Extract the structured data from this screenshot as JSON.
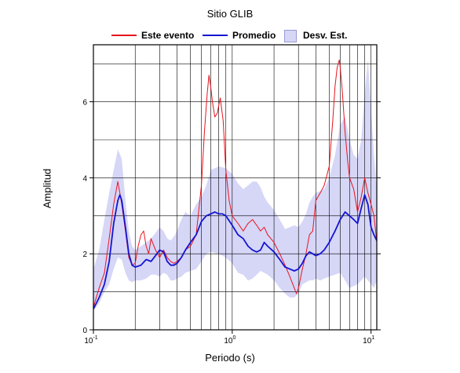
{
  "chart_data": {
    "type": "line",
    "title": "Sitio GLIB",
    "xlabel": "Periodo (s)",
    "ylabel": "Amplitud",
    "x_scale": "log",
    "xlim": [
      0.1,
      11
    ],
    "ylim": [
      0,
      7.5
    ],
    "grid": true,
    "legend_position": "top",
    "x_ticks": [
      {
        "value": 0.1,
        "base": "10",
        "exp": "-1"
      },
      {
        "value": 1,
        "base": "10",
        "exp": "0"
      },
      {
        "value": 10,
        "base": "10",
        "exp": "1"
      }
    ],
    "y_ticks": [
      0,
      2,
      4,
      6
    ],
    "colors": {
      "este": "#e8141e",
      "promedio": "#1414d2",
      "band_fill": "#d6d6f7",
      "band_edge": "#9a9ad8"
    },
    "series": [
      {
        "name": "Este evento",
        "x": [
          0.1,
          0.11,
          0.12,
          0.13,
          0.14,
          0.15,
          0.155,
          0.16,
          0.17,
          0.18,
          0.19,
          0.2,
          0.21,
          0.22,
          0.23,
          0.24,
          0.25,
          0.26,
          0.28,
          0.3,
          0.32,
          0.34,
          0.36,
          0.38,
          0.4,
          0.43,
          0.46,
          0.5,
          0.55,
          0.6,
          0.63,
          0.66,
          0.68,
          0.7,
          0.72,
          0.75,
          0.78,
          0.82,
          0.86,
          0.9,
          0.95,
          1.0,
          1.1,
          1.2,
          1.3,
          1.4,
          1.5,
          1.6,
          1.7,
          1.8,
          1.9,
          2.0,
          2.2,
          2.4,
          2.6,
          2.8,
          2.9,
          3.0,
          3.2,
          3.4,
          3.6,
          3.8,
          4.0,
          4.3,
          4.6,
          5.0,
          5.3,
          5.5,
          5.7,
          5.9,
          6.0,
          6.2,
          6.5,
          6.8,
          7.0,
          7.5,
          8.0,
          8.5,
          9.0,
          9.5,
          10.0,
          10.5,
          11.0
        ],
        "y": [
          0.6,
          1.1,
          1.5,
          2.4,
          3.3,
          3.9,
          3.6,
          3.3,
          2.6,
          1.9,
          1.7,
          1.75,
          2.2,
          2.5,
          2.6,
          2.2,
          2.0,
          2.4,
          2.1,
          1.9,
          2.1,
          1.9,
          1.8,
          1.75,
          1.8,
          1.9,
          2.1,
          2.2,
          2.5,
          3.8,
          5.2,
          6.2,
          6.7,
          6.4,
          6.0,
          5.6,
          5.7,
          6.1,
          5.5,
          4.2,
          3.4,
          3.0,
          2.8,
          2.6,
          2.8,
          2.9,
          2.75,
          2.6,
          2.7,
          2.5,
          2.4,
          2.3,
          2.0,
          1.7,
          1.4,
          1.1,
          0.95,
          1.1,
          1.6,
          2.0,
          2.5,
          2.6,
          3.4,
          3.6,
          3.8,
          4.3,
          5.5,
          6.4,
          6.9,
          7.1,
          6.9,
          6.3,
          5.2,
          4.4,
          4.0,
          3.7,
          3.1,
          3.5,
          4.0,
          3.6,
          3.3,
          3.0,
          2.3
        ]
      },
      {
        "name": "Promedio",
        "x": [
          0.1,
          0.11,
          0.12,
          0.13,
          0.14,
          0.15,
          0.155,
          0.16,
          0.17,
          0.18,
          0.19,
          0.2,
          0.22,
          0.24,
          0.26,
          0.28,
          0.3,
          0.32,
          0.34,
          0.36,
          0.38,
          0.4,
          0.43,
          0.46,
          0.5,
          0.55,
          0.6,
          0.65,
          0.7,
          0.75,
          0.8,
          0.85,
          0.9,
          1.0,
          1.1,
          1.2,
          1.3,
          1.4,
          1.5,
          1.6,
          1.7,
          1.8,
          2.0,
          2.2,
          2.4,
          2.6,
          2.8,
          3.0,
          3.2,
          3.4,
          3.6,
          3.8,
          4.0,
          4.3,
          4.6,
          5.0,
          5.5,
          6.0,
          6.5,
          7.0,
          7.5,
          8.0,
          8.5,
          9.0,
          9.5,
          10.0,
          10.5,
          11.0
        ],
        "y": [
          0.55,
          0.85,
          1.2,
          1.8,
          2.8,
          3.4,
          3.55,
          3.4,
          2.7,
          2.0,
          1.7,
          1.65,
          1.7,
          1.85,
          1.8,
          1.95,
          2.1,
          2.05,
          1.8,
          1.7,
          1.7,
          1.75,
          1.9,
          2.1,
          2.3,
          2.5,
          2.85,
          3.0,
          3.05,
          3.1,
          3.05,
          3.05,
          3.0,
          2.75,
          2.5,
          2.4,
          2.2,
          2.1,
          2.05,
          2.1,
          2.3,
          2.2,
          2.05,
          1.85,
          1.65,
          1.6,
          1.55,
          1.6,
          1.75,
          1.95,
          2.05,
          2.0,
          1.95,
          2.0,
          2.1,
          2.3,
          2.6,
          2.9,
          3.1,
          3.0,
          2.9,
          2.8,
          3.2,
          3.55,
          3.3,
          2.7,
          2.5,
          2.35
        ]
      },
      {
        "name": "Desv. Est.",
        "x": [
          0.1,
          0.11,
          0.12,
          0.13,
          0.14,
          0.15,
          0.16,
          0.17,
          0.18,
          0.19,
          0.2,
          0.22,
          0.24,
          0.26,
          0.28,
          0.3,
          0.32,
          0.34,
          0.36,
          0.38,
          0.4,
          0.43,
          0.46,
          0.5,
          0.55,
          0.6,
          0.65,
          0.7,
          0.8,
          0.9,
          1.0,
          1.1,
          1.2,
          1.3,
          1.4,
          1.5,
          1.6,
          1.7,
          1.8,
          2.0,
          2.2,
          2.4,
          2.6,
          2.8,
          3.0,
          3.2,
          3.4,
          3.6,
          3.8,
          4.0,
          4.3,
          4.6,
          5.0,
          5.5,
          6.0,
          6.5,
          7.0,
          7.5,
          8.0,
          8.5,
          9.0,
          9.5,
          10.0,
          10.5,
          11.0
        ],
        "upper": [
          1.6,
          2.1,
          2.9,
          3.6,
          4.2,
          4.75,
          4.5,
          3.4,
          2.6,
          2.2,
          2.1,
          2.2,
          2.3,
          2.4,
          2.55,
          2.7,
          2.6,
          2.4,
          2.35,
          2.45,
          2.6,
          2.9,
          3.1,
          3.0,
          3.3,
          3.5,
          3.8,
          4.2,
          4.3,
          4.25,
          4.1,
          3.85,
          3.7,
          3.8,
          3.9,
          3.9,
          3.75,
          3.5,
          3.35,
          3.15,
          2.9,
          2.65,
          2.7,
          2.75,
          2.7,
          2.85,
          3.05,
          3.35,
          3.5,
          3.6,
          3.65,
          3.7,
          4.0,
          4.6,
          5.4,
          5.6,
          5.0,
          4.6,
          4.5,
          5.0,
          6.2,
          7.1,
          5.8,
          4.6,
          3.7
        ],
        "lower": [
          0.5,
          0.7,
          1.0,
          1.2,
          1.6,
          1.9,
          1.85,
          1.5,
          1.3,
          1.25,
          1.3,
          1.3,
          1.35,
          1.45,
          1.45,
          1.4,
          1.5,
          1.45,
          1.3,
          1.3,
          1.35,
          1.4,
          1.5,
          1.55,
          1.6,
          1.8,
          2.0,
          2.05,
          2.0,
          1.9,
          1.75,
          1.5,
          1.45,
          1.3,
          1.35,
          1.45,
          1.55,
          1.5,
          1.45,
          1.3,
          1.1,
          0.95,
          0.85,
          0.85,
          0.95,
          1.2,
          1.25,
          1.3,
          1.3,
          1.35,
          1.3,
          1.35,
          1.4,
          1.45,
          1.5,
          1.3,
          1.1,
          1.15,
          1.2,
          1.3,
          1.4,
          1.3,
          1.2,
          1.1,
          1.3
        ]
      }
    ]
  }
}
